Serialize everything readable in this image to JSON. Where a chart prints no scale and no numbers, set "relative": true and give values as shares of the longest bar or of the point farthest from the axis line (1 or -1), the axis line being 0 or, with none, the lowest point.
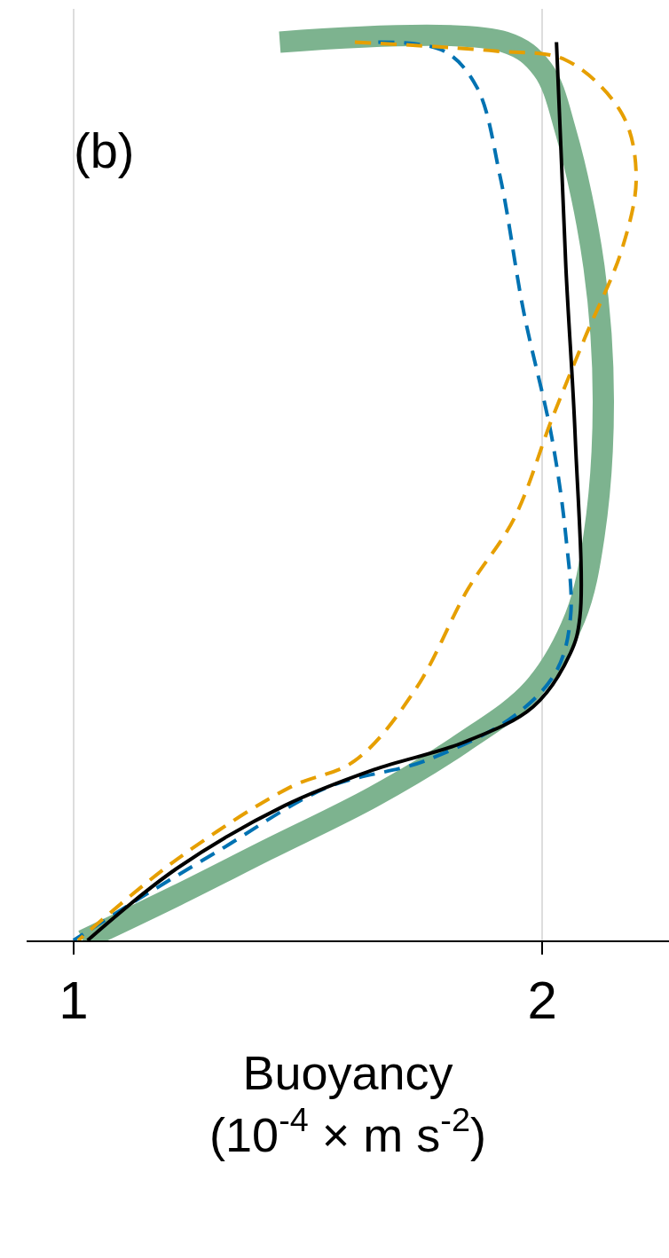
{
  "chart_data": {
    "type": "line",
    "xlabel": "Buoyancy\n(10$^{-4}$ × m s$^{-2}$)",
    "annotations": [
      "(b)"
    ],
    "xlim": [
      0.9,
      2.27
    ],
    "xticks": [
      1,
      2
    ],
    "relative": true,
    "tick_labels": "x",
    "grid": "x",
    "series": [
      {
        "color": "#7db38f",
        "line_style": "solid",
        "x": [
          1.44,
          1.92,
          2.0,
          2.05,
          2.11,
          2.13,
          2.11,
          2.07,
          1.98,
          1.83,
          1.64,
          1.41,
          1.22,
          1.02
        ],
        "values": [
          1,
          1,
          0.97,
          0.9,
          0.75,
          0.6,
          0.45,
          0.36,
          0.28,
          0.22,
          0.16,
          0.1,
          0.05,
          0
        ]
      },
      {
        "color": "#0072b2",
        "line_style": "dashed",
        "x": [
          1.65,
          1.79,
          1.86,
          1.91,
          1.96,
          2.02,
          2.05,
          2.06,
          2.03,
          1.94,
          1.75,
          1.54,
          1.31,
          1.12,
          1.0
        ],
        "values": [
          1,
          0.99,
          0.95,
          0.85,
          0.7,
          0.56,
          0.45,
          0.36,
          0.3,
          0.25,
          0.2,
          0.17,
          0.1,
          0.04,
          0
        ]
      },
      {
        "color": "#e69f00",
        "line_style": "dashed",
        "x": [
          1.6,
          1.9,
          2.05,
          2.17,
          2.2,
          2.17,
          2.09,
          2.02,
          1.94,
          1.84,
          1.73,
          1.6,
          1.46,
          1.22,
          1.01
        ],
        "values": [
          1,
          0.99,
          0.98,
          0.92,
          0.85,
          0.77,
          0.67,
          0.58,
          0.47,
          0.39,
          0.28,
          0.2,
          0.17,
          0.09,
          0
        ]
      },
      {
        "color": "#000000",
        "line_style": "solid",
        "x": [
          2.03,
          2.05,
          2.07,
          2.08,
          2.06,
          1.98,
          1.83,
          1.64,
          1.45,
          1.22,
          1.03
        ],
        "values": [
          1,
          0.75,
          0.56,
          0.36,
          0.32,
          0.26,
          0.22,
          0.19,
          0.15,
          0.08,
          0
        ]
      }
    ]
  }
}
